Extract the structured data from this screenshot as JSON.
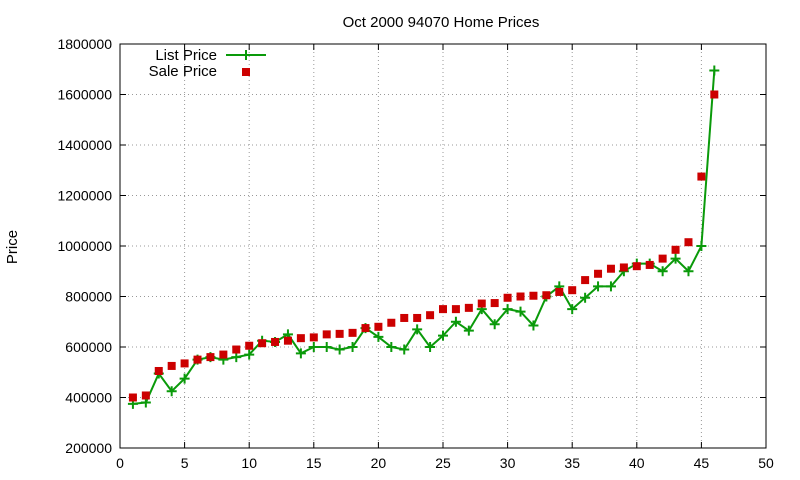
{
  "chart_data": {
    "type": "line",
    "title": "Oct 2000 94070 Home Prices",
    "xlabel": "",
    "ylabel": "Price",
    "xlim": [
      0,
      50
    ],
    "ylim": [
      200000,
      1800000
    ],
    "x_ticks": [
      "0",
      "5",
      "10",
      "15",
      "20",
      "25",
      "30",
      "35",
      "40",
      "45",
      "50"
    ],
    "y_ticks": [
      "200000",
      "400000",
      "600000",
      "800000",
      "1000000",
      "1200000",
      "1400000",
      "1600000",
      "1800000"
    ],
    "grid": true,
    "legend_position": "top-left",
    "x": [
      1,
      2,
      3,
      4,
      5,
      6,
      7,
      8,
      9,
      10,
      11,
      12,
      13,
      14,
      15,
      16,
      17,
      18,
      19,
      20,
      21,
      22,
      23,
      24,
      25,
      26,
      27,
      28,
      29,
      30,
      31,
      32,
      33,
      34,
      35,
      36,
      37,
      38,
      39,
      40,
      41,
      42,
      43,
      44,
      45,
      46
    ],
    "series": [
      {
        "name": "List Price",
        "style": "line-with-plus-markers",
        "color": "#0a9a0a",
        "values": [
          375000,
          380000,
          495000,
          425000,
          475000,
          550000,
          560000,
          550000,
          560000,
          570000,
          625000,
          620000,
          650000,
          575000,
          600000,
          600000,
          590000,
          600000,
          675000,
          640000,
          600000,
          590000,
          670000,
          600000,
          645000,
          700000,
          665000,
          750000,
          690000,
          750000,
          740000,
          685000,
          800000,
          840000,
          750000,
          795000,
          840000,
          840000,
          900000,
          930000,
          930000,
          900000,
          950000,
          900000,
          1000000,
          1695000
        ]
      },
      {
        "name": "Sale Price",
        "style": "square-markers",
        "color": "#cc0000",
        "values": [
          400000,
          408000,
          505000,
          525000,
          535000,
          550000,
          560000,
          570000,
          590000,
          605000,
          615000,
          620000,
          625000,
          635000,
          638000,
          650000,
          652000,
          656000,
          675000,
          680000,
          696000,
          715000,
          715000,
          726000,
          750000,
          750000,
          755000,
          772000,
          774000,
          795000,
          800000,
          803000,
          805000,
          818000,
          825000,
          865000,
          890000,
          910000,
          915000,
          920000,
          925000,
          950000,
          985000,
          1015000,
          1275000,
          1600000
        ]
      }
    ]
  }
}
